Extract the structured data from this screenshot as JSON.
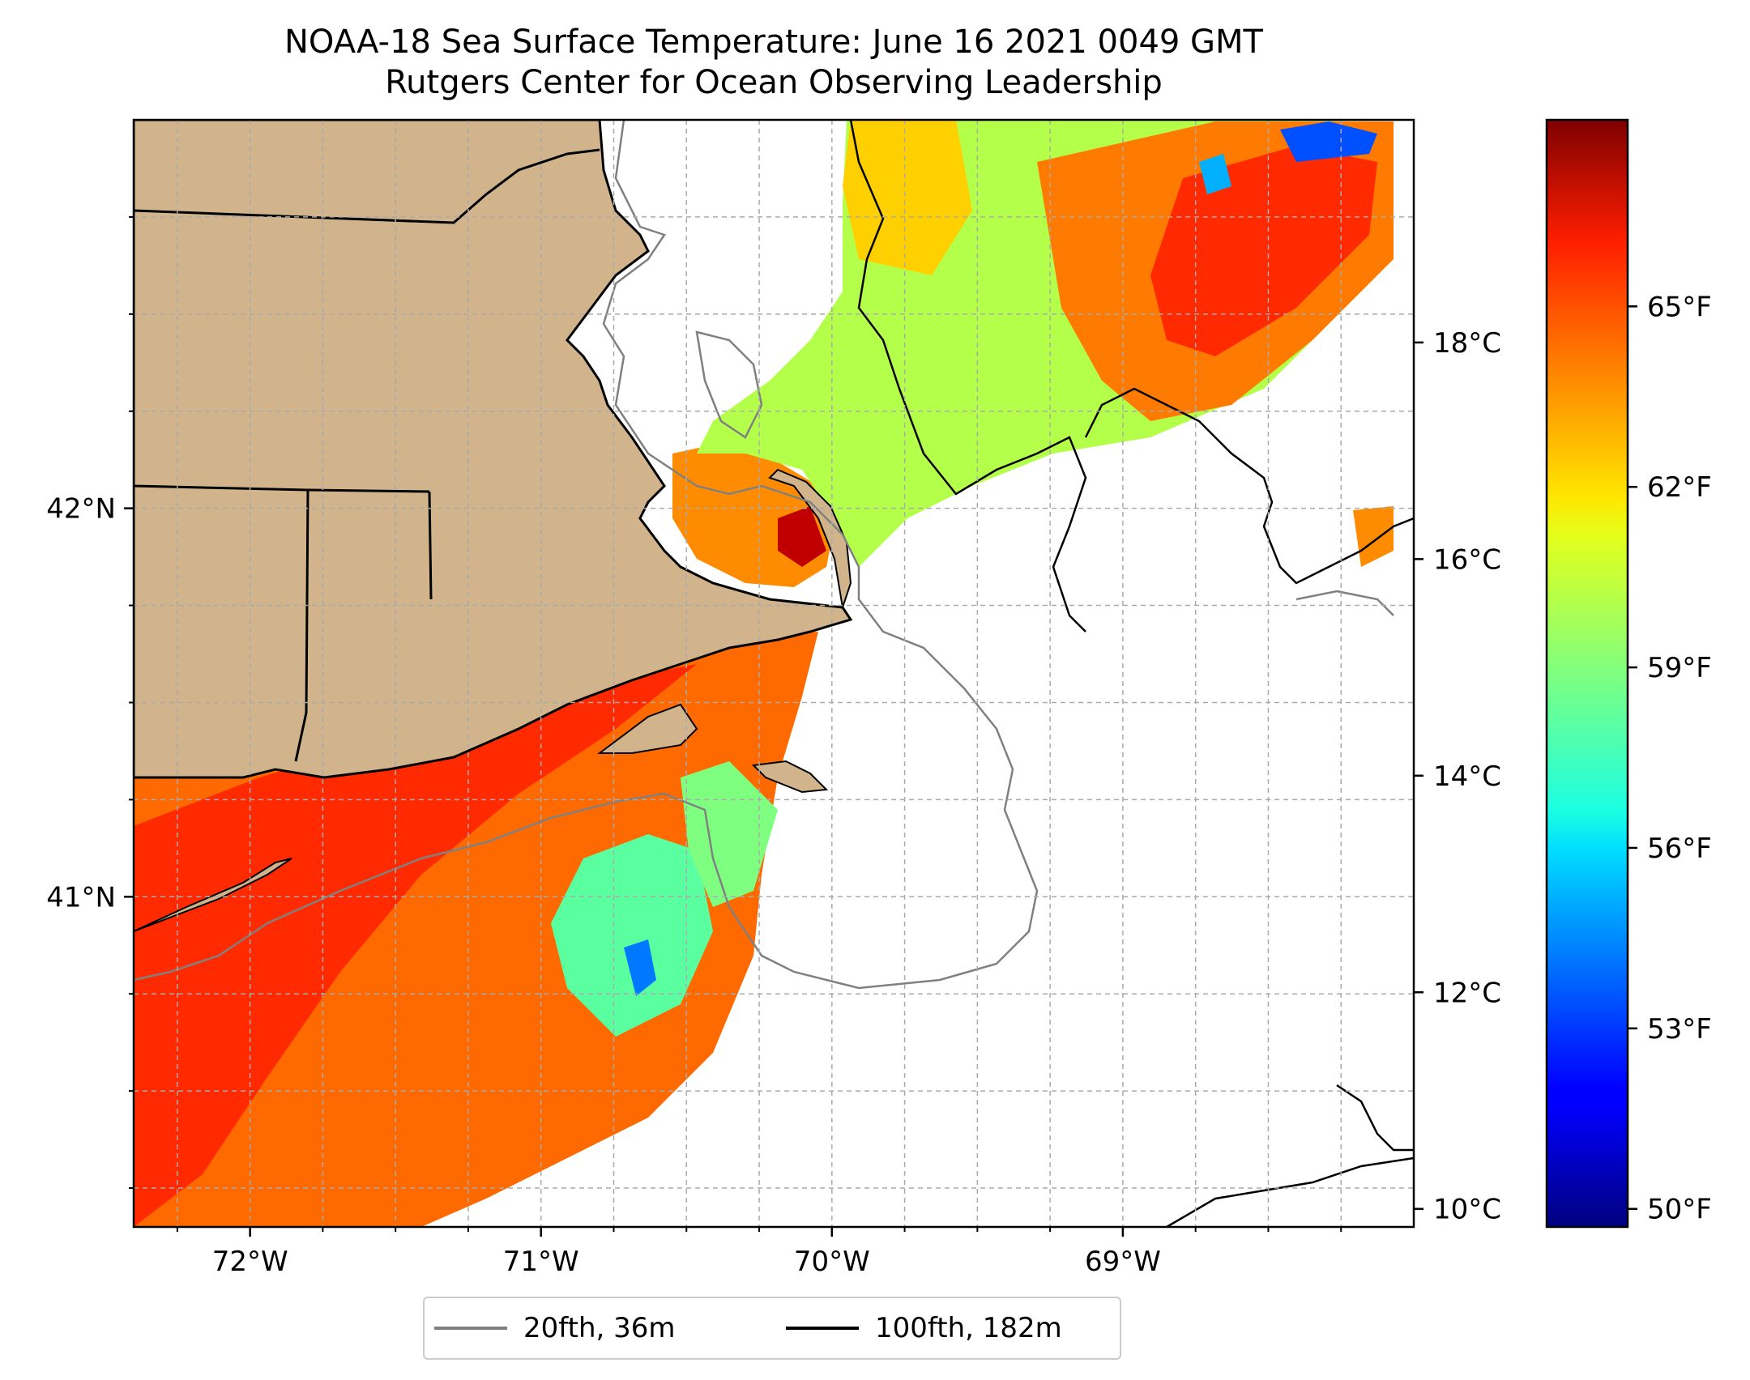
{
  "title": {
    "line1": "NOAA-18 Sea Surface Temperature: June 16 2021 0049 GMT",
    "line2": "Rutgers Center for Ocean Observing Leadership"
  },
  "map": {
    "lon_range": [
      -72.4,
      -68.0
    ],
    "lat_range": [
      40.15,
      43.0
    ],
    "lon_ticks": [
      {
        "value": -72,
        "label": "72°W"
      },
      {
        "value": -71,
        "label": "71°W"
      },
      {
        "value": -70,
        "label": "70°W"
      },
      {
        "value": -69,
        "label": "69°W"
      }
    ],
    "lat_ticks": [
      {
        "value": 42,
        "label": "42°N"
      },
      {
        "value": 41,
        "label": "41°N"
      }
    ],
    "gridlines": true,
    "land_color": "#d2b48c",
    "colormap": "jet"
  },
  "colorbar": {
    "celsius_ticks": [
      {
        "value": 10,
        "label": "10°C"
      },
      {
        "value": 12,
        "label": "12°C"
      },
      {
        "value": 14,
        "label": "14°C"
      },
      {
        "value": 16,
        "label": "16°C"
      },
      {
        "value": 18,
        "label": "18°C"
      }
    ],
    "fahrenheit_ticks": [
      {
        "value": 50,
        "label": "50°F"
      },
      {
        "value": 53,
        "label": "53°F"
      },
      {
        "value": 56,
        "label": "56°F"
      },
      {
        "value": 59,
        "label": "59°F"
      },
      {
        "value": 62,
        "label": "62°F"
      },
      {
        "value": 65,
        "label": "65°F"
      }
    ],
    "range_f": [
      49.7,
      68.1
    ]
  },
  "legend": {
    "items": [
      {
        "label": "20fth, 36m",
        "color": "#808080"
      },
      {
        "label": "100fth, 182m",
        "color": "#000000"
      }
    ]
  }
}
